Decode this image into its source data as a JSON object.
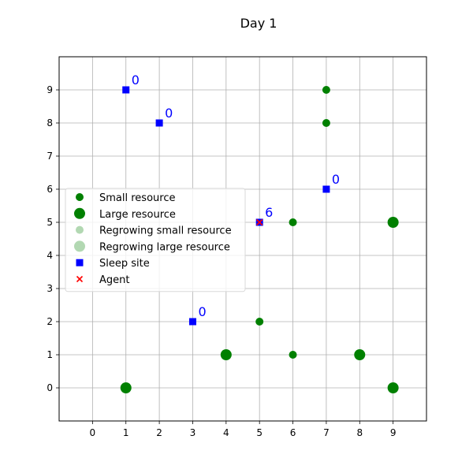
{
  "chart_data": {
    "type": "scatter",
    "title": "Day 1",
    "xlabel": "",
    "ylabel": "",
    "xlim": [
      -1,
      10
    ],
    "ylim": [
      -1,
      10
    ],
    "x_ticks": [
      "0",
      "1",
      "2",
      "3",
      "4",
      "5",
      "6",
      "7",
      "8",
      "9"
    ],
    "y_ticks": [
      "0",
      "1",
      "2",
      "3",
      "4",
      "5",
      "6",
      "7",
      "8",
      "9"
    ],
    "grid": true,
    "legend_position": "center-left",
    "colors": {
      "resource": "#008000",
      "regrowing": "#b2d8b2",
      "sleep_site": "#0000ff",
      "agent": "#ff0000",
      "site_label": "#0000ff"
    },
    "legend": [
      {
        "key": "small",
        "label": "Small resource"
      },
      {
        "key": "large",
        "label": "Large resource"
      },
      {
        "key": "regrow_small",
        "label": "Regrowing small resource"
      },
      {
        "key": "regrow_large",
        "label": "Regrowing large resource"
      },
      {
        "key": "sleep",
        "label": "Sleep site"
      },
      {
        "key": "agent",
        "label": "Agent"
      }
    ],
    "series": [
      {
        "key": "small",
        "points": [
          {
            "x": 7,
            "y": 9
          },
          {
            "x": 7,
            "y": 8
          },
          {
            "x": 6,
            "y": 5
          },
          {
            "x": 5,
            "y": 2
          },
          {
            "x": 6,
            "y": 1
          }
        ]
      },
      {
        "key": "large",
        "points": [
          {
            "x": 9,
            "y": 5
          },
          {
            "x": 4,
            "y": 1
          },
          {
            "x": 8,
            "y": 1
          },
          {
            "x": 1,
            "y": 0
          },
          {
            "x": 9,
            "y": 0
          }
        ]
      },
      {
        "key": "regrow_small",
        "points": []
      },
      {
        "key": "regrow_large",
        "points": []
      },
      {
        "key": "sleep",
        "points": [
          {
            "x": 1,
            "y": 9,
            "label": "0"
          },
          {
            "x": 2,
            "y": 8,
            "label": "0"
          },
          {
            "x": 7,
            "y": 6,
            "label": "0"
          },
          {
            "x": 5,
            "y": 5,
            "label": "6"
          },
          {
            "x": 3,
            "y": 2,
            "label": "0"
          }
        ]
      },
      {
        "key": "agent",
        "points": [
          {
            "x": 5,
            "y": 5
          }
        ]
      }
    ]
  }
}
